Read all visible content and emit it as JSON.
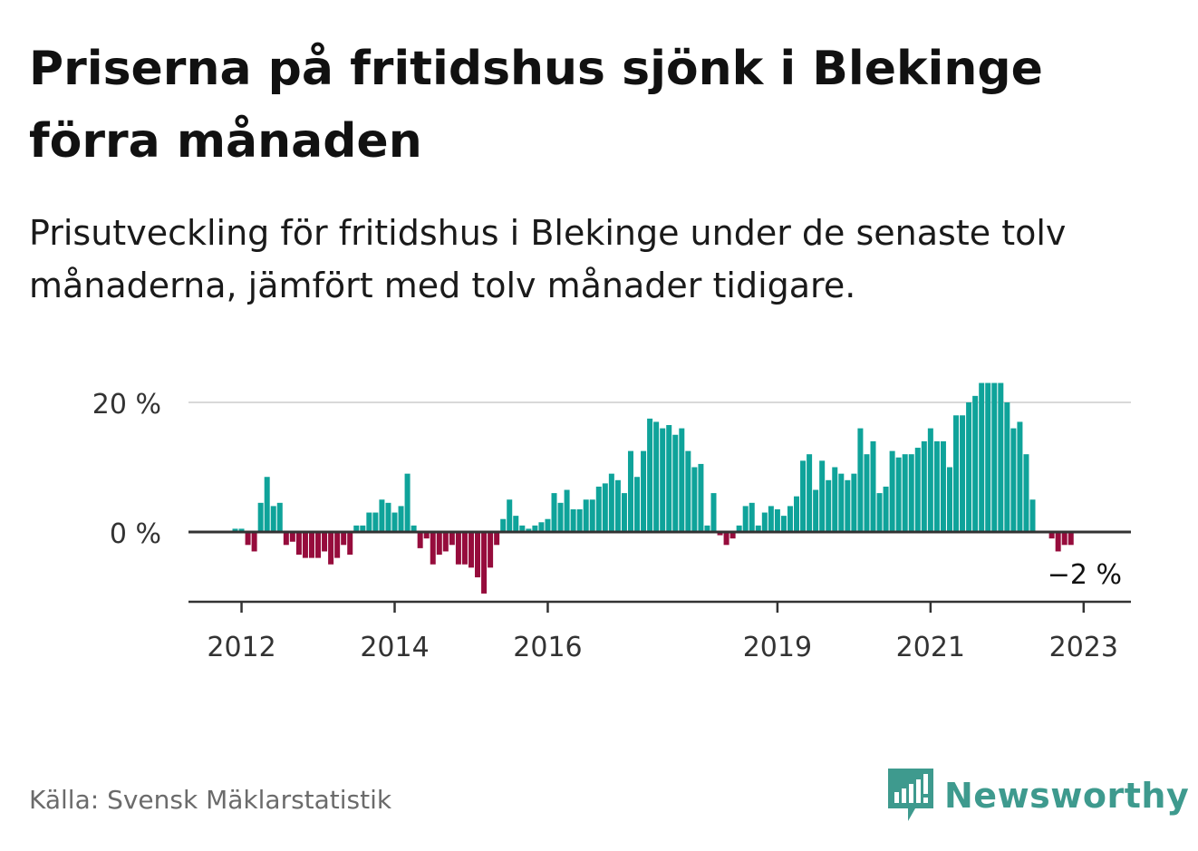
{
  "title": "Priserna på fritidshus sjönk i Blekinge förra månaden",
  "subtitle": "Prisutveckling för fritidshus i Blekinge under de senaste tolv månaderna, jämfört med tolv månader tidigare.",
  "source": "Källa: Svensk Mäklarstatistik",
  "brand": {
    "name": "Newsworthy",
    "icon": "newsworthy-logo-icon"
  },
  "colors": {
    "positive": "#0fa39a",
    "negative": "#960c3c",
    "axis": "#333333",
    "grid": "#d9d9d9",
    "brand": "#3e9a8e"
  },
  "chart_data": {
    "type": "bar",
    "title": "",
    "xlabel": "",
    "ylabel": "",
    "ylim": [
      -10,
      23
    ],
    "y_ticks": [
      {
        "value": 0,
        "label": "0 %"
      },
      {
        "value": 20,
        "label": "20 %"
      }
    ],
    "x_ticks": [
      {
        "value": 2012,
        "label": "2012"
      },
      {
        "value": 2014,
        "label": "2014"
      },
      {
        "value": 2016,
        "label": "2016"
      },
      {
        "value": 2019,
        "label": "2019"
      },
      {
        "value": 2021,
        "label": "2021"
      },
      {
        "value": 2023,
        "label": "2023"
      }
    ],
    "grid": true,
    "end_label": "−2 %",
    "start": "2011-12",
    "values": [
      0.5,
      0.5,
      -2,
      -3,
      4.5,
      8.5,
      4,
      4.5,
      -2,
      -1.5,
      -3.5,
      -4,
      -4,
      -4,
      -3,
      -5,
      -4,
      -2,
      -3.5,
      1,
      1,
      3,
      3,
      5,
      4.5,
      3,
      4,
      9,
      1,
      -2.5,
      -1,
      -5,
      -3.5,
      -3,
      -2,
      -5,
      -5,
      -5.5,
      -7,
      -9.5,
      -5.5,
      -2,
      2,
      5,
      2.5,
      1,
      0.5,
      1,
      1.5,
      2,
      6,
      4.5,
      6.5,
      3.5,
      3.5,
      5,
      5,
      7,
      7.5,
      9,
      8,
      6,
      12.5,
      8.5,
      12.5,
      17.5,
      17,
      16,
      16.5,
      15,
      16,
      12.5,
      10,
      10.5,
      1,
      6,
      -0.5,
      -2,
      -1,
      1,
      4,
      4.5,
      1,
      3,
      4,
      3.5,
      2.5,
      4,
      5.5,
      11,
      12,
      6.5,
      11,
      8,
      10,
      9,
      8,
      9,
      16,
      12,
      14,
      6,
      7,
      12.5,
      11.5,
      12,
      12,
      13,
      14,
      16,
      14,
      14,
      10,
      18,
      18,
      20,
      21,
      23,
      23,
      23,
      23,
      20,
      16,
      17,
      12,
      5,
      0,
      0,
      -1,
      -3,
      -2,
      -2
    ]
  }
}
